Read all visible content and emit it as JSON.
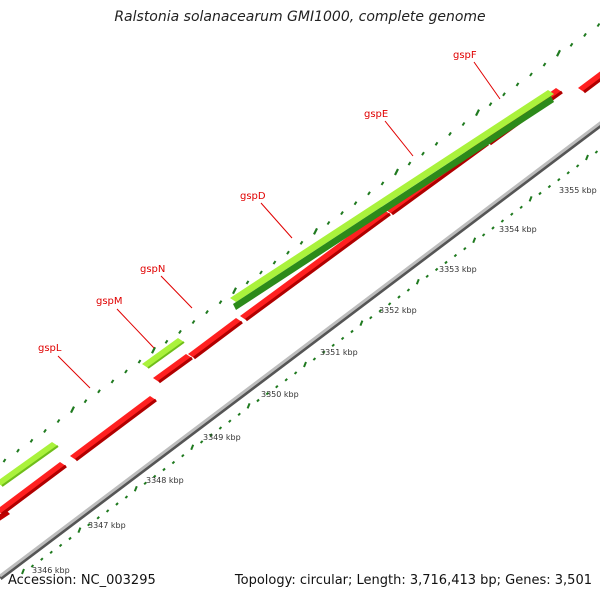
{
  "title": "Ralstonia solanacearum GMI1000, complete genome",
  "footer": {
    "accession": "Accession: NC_003295",
    "summary": "Topology: circular; Length: 3,716,413 bp; Genes: 3,501"
  },
  "colors": {
    "background": "#ffffff",
    "gene_label": "#e00000",
    "outer_gene_light": "#aaf23c",
    "outer_gene_dark": "#2c8a1a",
    "inner_gene": "#ff1e1e",
    "backbone": "#a8a8a8",
    "tick": "#1f7a1f"
  },
  "scale_labels": [
    "3346 kbp",
    "3347 kbp",
    "3348 kbp",
    "3349 kbp",
    "3350 kbp",
    "3351 kbp",
    "3352 kbp",
    "3353 kbp",
    "3354 kbp",
    "3355 kbp"
  ],
  "gene_labels": [
    "gspL",
    "gspM",
    "gspN",
    "gspD",
    "gspE",
    "gspF"
  ]
}
